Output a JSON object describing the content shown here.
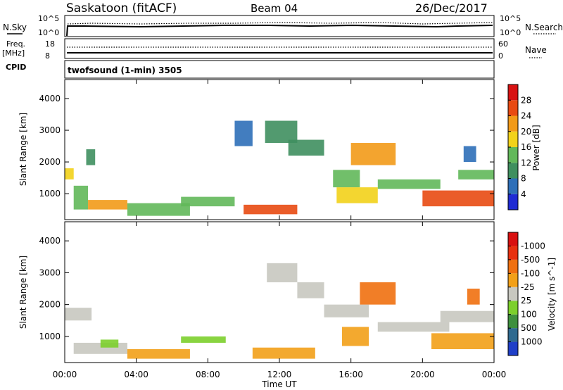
{
  "header": {
    "station": "Saskatoon (fitACF)",
    "beam": "Beam 04",
    "date": "26/Dec/2017"
  },
  "panels": {
    "nsky": {
      "label": "N.Sky",
      "ticks_left": [
        "10^5",
        "10^0"
      ],
      "ticks_right": [
        "10^5",
        "10^0"
      ],
      "right_label": "N.Search"
    },
    "freq": {
      "label_top": "Freq.",
      "label_unit": "[MHz]",
      "ticks_left": [
        "18",
        "8"
      ],
      "ticks_right": [
        "60",
        "0"
      ],
      "right_label": "Nave"
    },
    "cpid": {
      "label": "CPID",
      "value": "twofsound (1-min) 3505"
    }
  },
  "chart_data": [
    {
      "type": "heatmap",
      "title": "",
      "xlabel": "",
      "ylabel": "Slant Range [km]",
      "x_ticks": [
        "00:00",
        "04:00",
        "08:00",
        "12:00",
        "16:00",
        "20:00",
        "00:00"
      ],
      "xlim_hours": [
        0,
        24
      ],
      "y_ticks": [
        1000,
        2000,
        3000,
        4000
      ],
      "ylim": [
        180,
        4600
      ],
      "colorbar": {
        "label": "Power [dB]",
        "ticks": [
          4,
          8,
          12,
          16,
          20,
          24,
          28
        ],
        "range": [
          0,
          30
        ],
        "colors": [
          "#1f2bd4",
          "#2e6fb8",
          "#3f8f5f",
          "#62b85a",
          "#f2d21a",
          "#f29a18",
          "#e84a12",
          "#d81212"
        ]
      },
      "regions": [
        {
          "t": [
            0.0,
            0.5
          ],
          "r": [
            1450,
            1800
          ],
          "level": 4
        },
        {
          "t": [
            0.5,
            1.3
          ],
          "r": [
            500,
            1250
          ],
          "level": 3
        },
        {
          "t": [
            1.2,
            1.7
          ],
          "r": [
            1900,
            2400
          ],
          "level": 2
        },
        {
          "t": [
            1.3,
            3.5
          ],
          "r": [
            500,
            800
          ],
          "level": 5
        },
        {
          "t": [
            3.5,
            7.0
          ],
          "r": [
            300,
            700
          ],
          "level": 3
        },
        {
          "t": [
            6.5,
            9.5
          ],
          "r": [
            600,
            900
          ],
          "level": 3
        },
        {
          "t": [
            9.5,
            10.5
          ],
          "r": [
            2500,
            3300
          ],
          "level": 1
        },
        {
          "t": [
            10.0,
            13.0
          ],
          "r": [
            350,
            650
          ],
          "level": 6
        },
        {
          "t": [
            11.2,
            13.0
          ],
          "r": [
            2600,
            3300
          ],
          "level": 2
        },
        {
          "t": [
            12.5,
            14.5
          ],
          "r": [
            2200,
            2700
          ],
          "level": 2
        },
        {
          "t": [
            15.0,
            16.5
          ],
          "r": [
            1200,
            1750
          ],
          "level": 3
        },
        {
          "t": [
            15.2,
            17.5
          ],
          "r": [
            700,
            1200
          ],
          "level": 4
        },
        {
          "t": [
            16.0,
            18.5
          ],
          "r": [
            1900,
            2600
          ],
          "level": 5
        },
        {
          "t": [
            17.5,
            21.0
          ],
          "r": [
            1150,
            1450
          ],
          "level": 3
        },
        {
          "t": [
            20.0,
            24.0
          ],
          "r": [
            600,
            1100
          ],
          "level": 6
        },
        {
          "t": [
            22.0,
            24.0
          ],
          "r": [
            1450,
            1750
          ],
          "level": 3
        },
        {
          "t": [
            22.3,
            23.0
          ],
          "r": [
            2000,
            2500
          ],
          "level": 1
        }
      ]
    },
    {
      "type": "heatmap",
      "title": "",
      "xlabel": "Time UT",
      "ylabel": "Slant Range [km]",
      "x_ticks": [
        "00:00",
        "04:00",
        "08:00",
        "12:00",
        "16:00",
        "20:00",
        "00:00"
      ],
      "xlim_hours": [
        0,
        24
      ],
      "y_ticks": [
        1000,
        2000,
        3000,
        4000
      ],
      "ylim": [
        180,
        4600
      ],
      "colorbar": {
        "label": "Velocity [m s^-1]",
        "ticks": [
          "1000",
          "500",
          "100",
          "25",
          "-25",
          "-100",
          "-500",
          "-1000"
        ],
        "colors": [
          "#1f3fc8",
          "#2f6a8f",
          "#3e8f3e",
          "#7ccf2c",
          "#c8c8c0",
          "#f2a018",
          "#f07010",
          "#e83010",
          "#d81010"
        ]
      },
      "regions": [
        {
          "t": [
            0.0,
            1.5
          ],
          "r": [
            1500,
            1900
          ],
          "level": 4
        },
        {
          "t": [
            0.5,
            3.5
          ],
          "r": [
            450,
            800
          ],
          "level": 4
        },
        {
          "t": [
            2.0,
            3.0
          ],
          "r": [
            650,
            900
          ],
          "level": 3
        },
        {
          "t": [
            3.5,
            7.0
          ],
          "r": [
            300,
            600
          ],
          "level": 5
        },
        {
          "t": [
            6.5,
            9.0
          ],
          "r": [
            800,
            1000
          ],
          "level": 3
        },
        {
          "t": [
            10.5,
            14.0
          ],
          "r": [
            300,
            650
          ],
          "level": 5
        },
        {
          "t": [
            11.3,
            13.0
          ],
          "r": [
            2700,
            3300
          ],
          "level": 4
        },
        {
          "t": [
            13.0,
            14.5
          ],
          "r": [
            2200,
            2700
          ],
          "level": 4
        },
        {
          "t": [
            14.5,
            17.0
          ],
          "r": [
            1600,
            2000
          ],
          "level": 4
        },
        {
          "t": [
            15.5,
            17.0
          ],
          "r": [
            700,
            1300
          ],
          "level": 5
        },
        {
          "t": [
            16.5,
            18.5
          ],
          "r": [
            2000,
            2700
          ],
          "level": 6
        },
        {
          "t": [
            17.5,
            21.5
          ],
          "r": [
            1150,
            1450
          ],
          "level": 4
        },
        {
          "t": [
            21.0,
            24.0
          ],
          "r": [
            1450,
            1800
          ],
          "level": 4
        },
        {
          "t": [
            20.5,
            24.0
          ],
          "r": [
            600,
            1100
          ],
          "level": 5
        },
        {
          "t": [
            22.5,
            23.2
          ],
          "r": [
            2000,
            2500
          ],
          "level": 6
        }
      ]
    }
  ]
}
